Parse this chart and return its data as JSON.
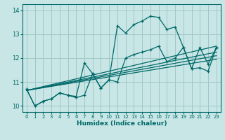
{
  "background_color": "#c8e6e6",
  "grid_color": "#a0c8c8",
  "line_color": "#006868",
  "xlabel": "Humidex (Indice chaleur)",
  "xlim": [
    -0.5,
    23.5
  ],
  "ylim": [
    9.75,
    14.25
  ],
  "yticks": [
    10,
    11,
    12,
    13,
    14
  ],
  "xticks": [
    0,
    1,
    2,
    3,
    4,
    5,
    6,
    7,
    8,
    9,
    10,
    11,
    12,
    13,
    14,
    15,
    16,
    17,
    18,
    19,
    20,
    21,
    22,
    23
  ],
  "series1": {
    "x": [
      0,
      1,
      2,
      3,
      4,
      5,
      6,
      7,
      8,
      9,
      10,
      11,
      12,
      13,
      14,
      15,
      16,
      17,
      18,
      19,
      20,
      21,
      22,
      23
    ],
    "y": [
      10.7,
      10.0,
      10.2,
      10.3,
      10.55,
      10.45,
      10.4,
      11.8,
      11.35,
      10.75,
      11.1,
      13.35,
      13.05,
      13.4,
      13.55,
      13.75,
      13.7,
      13.2,
      13.3,
      12.45,
      11.55,
      11.6,
      11.45,
      12.45
    ]
  },
  "series2": {
    "x": [
      0,
      1,
      2,
      3,
      4,
      5,
      6,
      7,
      8,
      9,
      10,
      11,
      12,
      13,
      14,
      15,
      16,
      17,
      18,
      19,
      20,
      21,
      22,
      23
    ],
    "y": [
      10.7,
      10.0,
      10.2,
      10.3,
      10.55,
      10.45,
      10.35,
      10.45,
      11.35,
      10.75,
      11.1,
      11.0,
      12.0,
      12.15,
      12.25,
      12.35,
      12.5,
      11.85,
      12.0,
      12.45,
      11.55,
      12.45,
      11.75,
      12.45
    ]
  },
  "trend_lines": [
    {
      "x": [
        0,
        23
      ],
      "y": [
        10.65,
        12.5
      ]
    },
    {
      "x": [
        0,
        23
      ],
      "y": [
        10.65,
        12.25
      ]
    },
    {
      "x": [
        0,
        23
      ],
      "y": [
        10.65,
        12.1
      ]
    },
    {
      "x": [
        0,
        23
      ],
      "y": [
        10.65,
        11.95
      ]
    }
  ]
}
